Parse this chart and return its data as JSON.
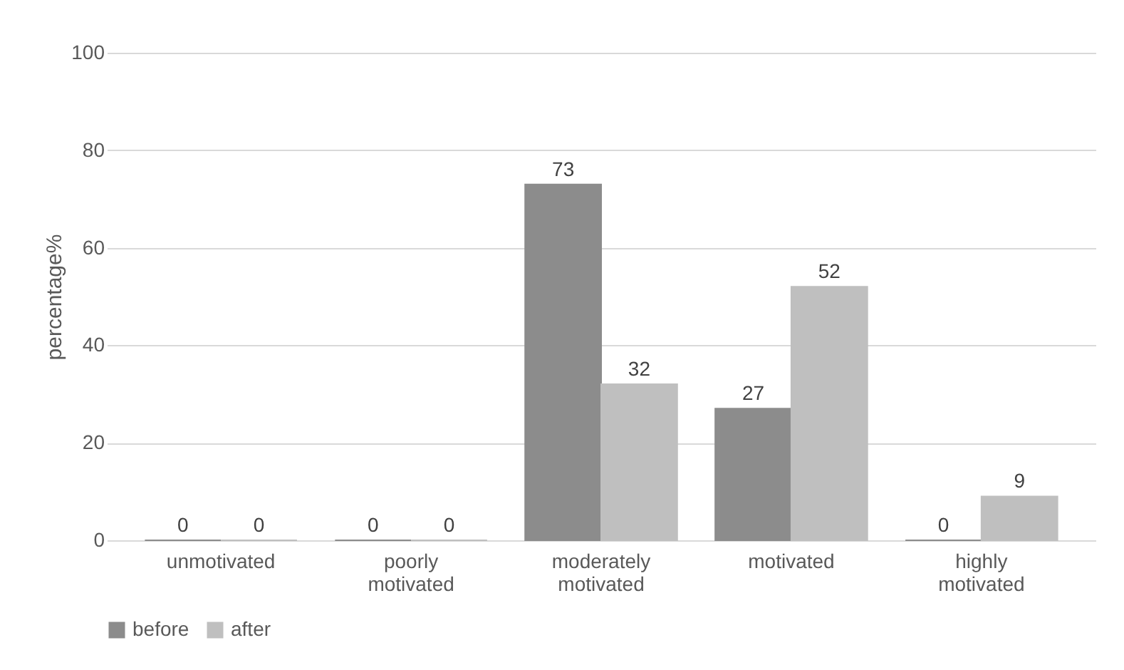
{
  "chart_data": {
    "type": "bar",
    "ylabel": "percentage%",
    "categories": [
      "unmotivated",
      "poorly motivated",
      "moderately motivated",
      "motivated",
      "highly motivated"
    ],
    "series": [
      {
        "name": "before",
        "color": "#8c8c8c",
        "values": [
          0,
          0,
          73,
          27,
          0
        ]
      },
      {
        "name": "after",
        "color": "#bfbfbf",
        "values": [
          0,
          0,
          32,
          52,
          9
        ]
      }
    ],
    "ylim": [
      0,
      100
    ],
    "yticks": [
      0,
      20,
      40,
      60,
      80,
      100
    ],
    "grid": "y",
    "legend": "bottom",
    "data_labels": true
  }
}
